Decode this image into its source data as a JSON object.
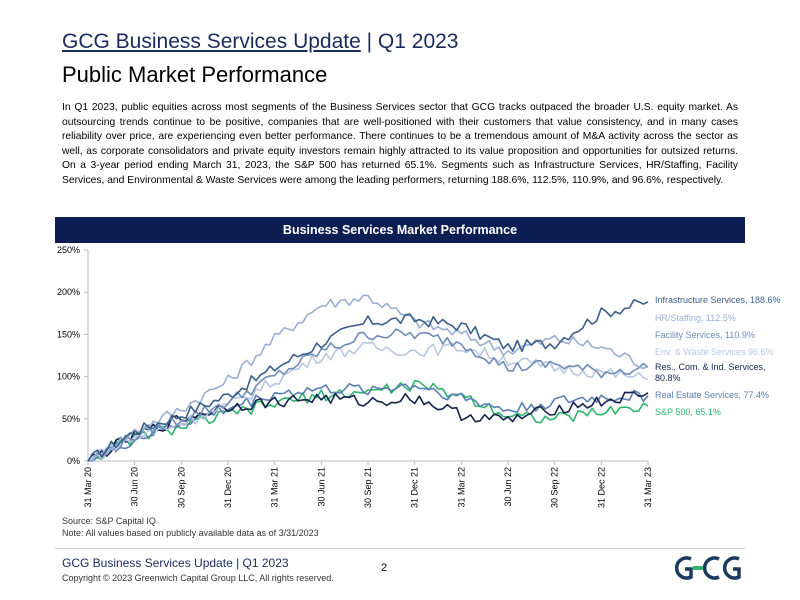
{
  "header": {
    "title_main": "GCG Business Services Update",
    "title_sep": " | ",
    "title_period": "Q1 2023",
    "subtitle": "Public Market Performance"
  },
  "body_text": "In Q1 2023, public equities across most segments of the Business Services sector that GCG tracks outpaced the broader U.S. equity market.  As outsourcing trends continue to be positive, companies that are well-positioned with their customers that value consistency, and in many cases reliability over price, are experiencing even better performance.  There continues to be a tremendous amount of M&A activity across the sector as well, as corporate consolidators and private equity investors remain highly attracted to its value proposition and opportunities for outsized returns. On a 3-year period ending March 31, 2023, the S&P 500 has returned 65.1%. Segments such as Infrastructure Services, HR/Staffing, Facility Services, and Environmental & Waste Services were among the leading performers, returning 188.6%, 112.5%, 110.9%, and 96.6%, respectively.",
  "chart_title": "Business Services Market Performance",
  "source": "Source: S&P Capital IQ",
  "note": "Note: All values based on publicly available data as of 3/31/2023",
  "footer": {
    "title": "GCG Business Services Update | Q1 2023",
    "copyright": "Copyright © 2023 Greenwich Capital Group LLC, All rights reserved.",
    "page": "2"
  },
  "chart_data": {
    "type": "line",
    "title": "Business Services Market Performance",
    "ylim": [
      0,
      250
    ],
    "yticks": [
      "0%",
      "50%",
      "100%",
      "150%",
      "200%",
      "250%"
    ],
    "ytick_values": [
      0,
      50,
      100,
      150,
      200,
      250
    ],
    "x": [
      "31 Mar 20",
      "30 Jun 20",
      "30 Sep 20",
      "31 Dec 20",
      "31 Mar 21",
      "30 Jun 21",
      "30 Sep 21",
      "31 Dec 21",
      "31 Mar 22",
      "30 Jun 22",
      "30 Sep 22",
      "31 Dec 22",
      "31 Mar 23"
    ],
    "grid": false,
    "legend_position": "right",
    "series": [
      {
        "name": "Infrastructure Services, 188.6%",
        "color": "#3a5f8c",
        "values": [
          0,
          35,
          55,
          78,
          110,
          140,
          165,
          168,
          160,
          135,
          140,
          175,
          188.6
        ]
      },
      {
        "name": "HR/Staffing, 112.5%",
        "color": "#9aaed2",
        "values": [
          0,
          35,
          62,
          95,
          145,
          185,
          195,
          165,
          150,
          130,
          145,
          135,
          112.5
        ]
      },
      {
        "name": "Facility Services, 110.9%",
        "color": "#6d8cb8",
        "values": [
          0,
          30,
          50,
          70,
          100,
          130,
          150,
          150,
          140,
          110,
          115,
          105,
          110.9
        ]
      },
      {
        "name": "Env. & Waste Services 96.6%",
        "color": "#b8c6e0",
        "values": [
          0,
          28,
          45,
          65,
          95,
          125,
          135,
          130,
          135,
          120,
          110,
          105,
          96.6
        ]
      },
      {
        "name": "Res., Com. & Ind. Services, 80.8%",
        "color": "#15234d",
        "values": [
          0,
          30,
          50,
          65,
          70,
          75,
          70,
          75,
          55,
          48,
          62,
          70,
          80.8
        ]
      },
      {
        "name": "Real Estate Services, 77.4%",
        "color": "#5a7fb5",
        "values": [
          0,
          25,
          45,
          62,
          80,
          85,
          85,
          90,
          75,
          60,
          70,
          75,
          77.4
        ]
      },
      {
        "name": "S&P 500, 65.1%",
        "color": "#2db56a",
        "values": [
          0,
          28,
          40,
          55,
          68,
          78,
          82,
          90,
          78,
          55,
          50,
          58,
          65.1
        ]
      }
    ]
  }
}
